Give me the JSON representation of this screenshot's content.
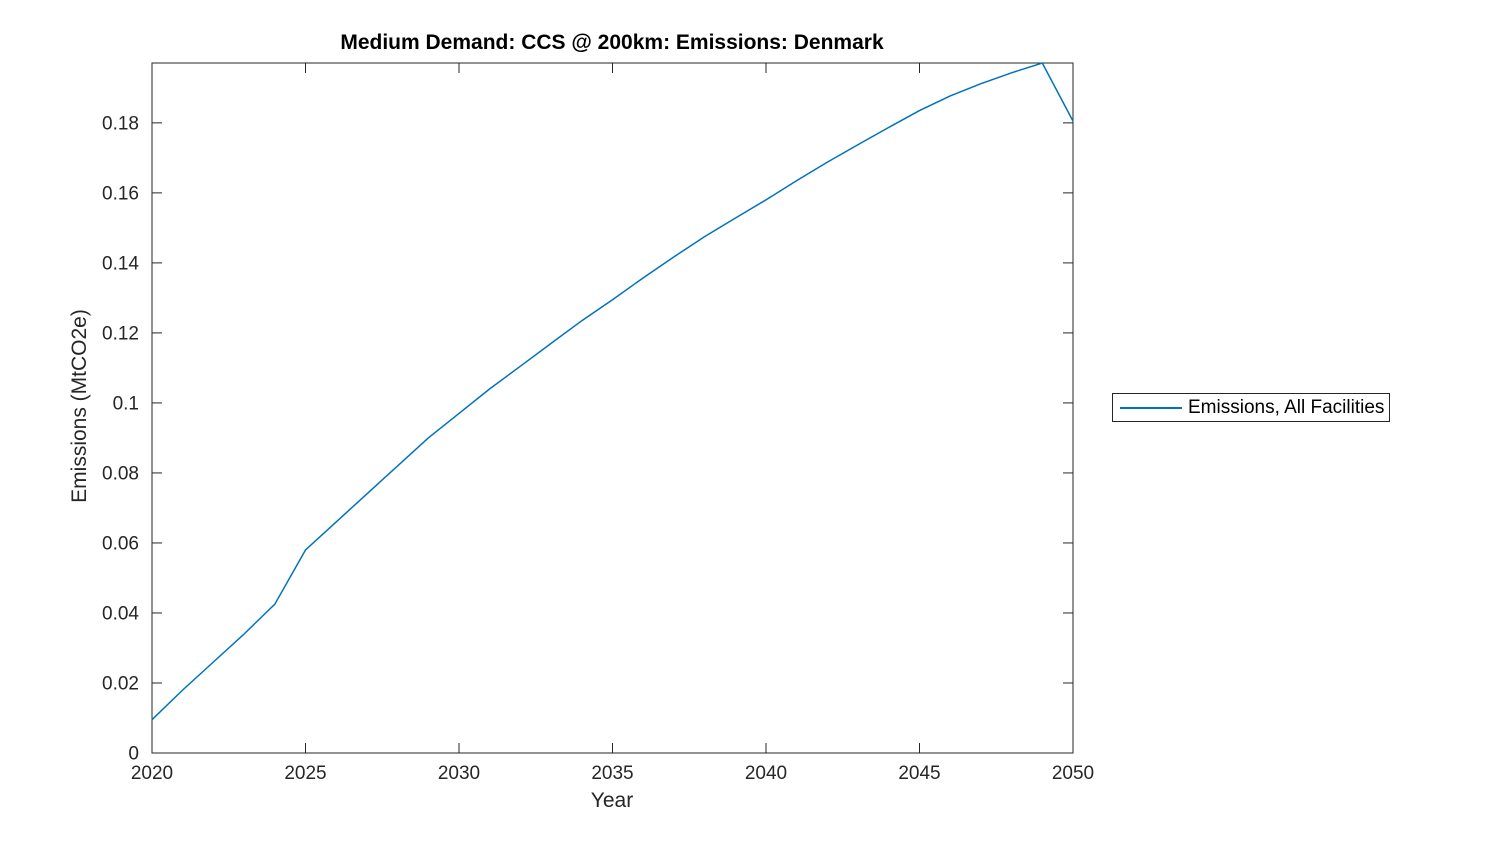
{
  "figure": {
    "background": "#ffffff",
    "accent_line_color": "#0072BD",
    "axis_color": "#262626",
    "text_color": "#000000"
  },
  "chart_data": {
    "type": "line",
    "title": "Medium Demand: CCS @ 200km: Emissions: Denmark",
    "xlabel": "Year",
    "ylabel": "Emissions (MtCO2e)",
    "xlim": [
      2020,
      2050
    ],
    "ylim": [
      0,
      0.1971
    ],
    "xticks": [
      2020,
      2025,
      2030,
      2035,
      2040,
      2045,
      2050
    ],
    "xtick_labels": [
      "2020",
      "2025",
      "2030",
      "2035",
      "2040",
      "2045",
      "2050"
    ],
    "yticks": [
      0,
      0.02,
      0.04,
      0.06,
      0.08,
      0.1,
      0.12,
      0.14,
      0.16,
      0.18
    ],
    "ytick_labels": [
      "0",
      "0.02",
      "0.04",
      "0.06",
      "0.08",
      "0.1",
      "0.12",
      "0.14",
      "0.16",
      "0.18"
    ],
    "grid": false,
    "box": true,
    "tick_direction": "in",
    "legend_position": "right-outside",
    "x": [
      2020,
      2021,
      2022,
      2023,
      2024,
      2025,
      2026,
      2027,
      2028,
      2029,
      2030,
      2031,
      2032,
      2033,
      2034,
      2035,
      2036,
      2037,
      2038,
      2039,
      2040,
      2041,
      2042,
      2043,
      2044,
      2045,
      2046,
      2047,
      2048,
      2049,
      2050
    ],
    "series": [
      {
        "name": "Emissions, All Facilities",
        "color": "#0072BD",
        "values": [
          0.0095,
          0.018,
          0.026,
          0.034,
          0.0425,
          0.058,
          0.066,
          0.074,
          0.082,
          0.09,
          0.097,
          0.104,
          0.1105,
          0.117,
          0.1235,
          0.1295,
          0.1357,
          0.1417,
          0.1475,
          0.1528,
          0.158,
          0.1635,
          0.1688,
          0.1738,
          0.1787,
          0.1835,
          0.1877,
          0.1912,
          0.1943,
          0.1971,
          0.1805
        ]
      }
    ]
  },
  "legend": {
    "label": "Emissions, All Facilities"
  }
}
